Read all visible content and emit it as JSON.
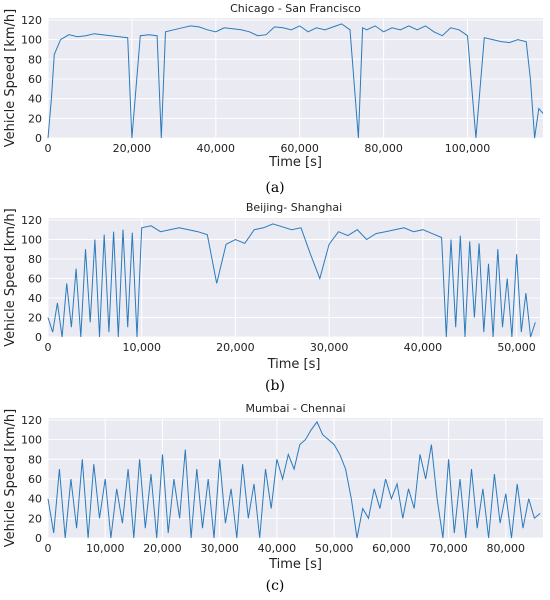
{
  "chart_data": [
    {
      "type": "line",
      "panel_label": "(a)",
      "title": "Chicago - San Francisco",
      "xlabel": "Time [s]",
      "ylabel": "Vehicle Speed [km/h]",
      "xlim": [
        0,
        118000
      ],
      "ylim": [
        0,
        122
      ],
      "xticks": [
        0,
        20000,
        40000,
        60000,
        80000,
        100000
      ],
      "xtick_labels": [
        "0",
        "20,000",
        "40,000",
        "60,000",
        "80,000",
        "100,000"
      ],
      "yticks": [
        0,
        20,
        40,
        60,
        80,
        100,
        120
      ],
      "ytick_labels": [
        "0",
        "20",
        "40",
        "60",
        "80",
        "100",
        "120"
      ],
      "grid": true,
      "series_color": "#2a7bbd",
      "bg_color": "#eaeaf2",
      "series": [
        {
          "x": [
            0,
            800,
            1500,
            3000,
            5000,
            7000,
            9000,
            11000,
            13000,
            15000,
            17000,
            19000,
            20000,
            22000,
            24000,
            26000,
            27000,
            28000,
            30000,
            32000,
            34000,
            36000,
            38000,
            40000,
            42000,
            44000,
            46000,
            48000,
            50000,
            52000,
            54000,
            56000,
            58000,
            60000,
            62000,
            64000,
            66000,
            68000,
            70000,
            72000,
            74000,
            75000,
            76000,
            78000,
            80000,
            82000,
            84000,
            86000,
            88000,
            90000,
            92000,
            94000,
            96000,
            98000,
            100000,
            102000,
            104000,
            106000,
            108000,
            110000,
            112000,
            114000,
            115000,
            116000,
            117000,
            118000
          ],
          "y": [
            0,
            40,
            85,
            100,
            105,
            103,
            104,
            106,
            105,
            104,
            103,
            102,
            0,
            104,
            105,
            104,
            0,
            108,
            110,
            112,
            114,
            113,
            110,
            108,
            112,
            111,
            110,
            108,
            104,
            105,
            113,
            112,
            110,
            114,
            108,
            112,
            110,
            113,
            116,
            110,
            0,
            112,
            110,
            114,
            108,
            112,
            110,
            114,
            110,
            114,
            108,
            104,
            112,
            110,
            104,
            0,
            102,
            100,
            98,
            97,
            100,
            98,
            60,
            0,
            30,
            25
          ]
        }
      ]
    },
    {
      "type": "line",
      "panel_label": "(b)",
      "title": "Beijing- Shanghai",
      "xlabel": "Time [s]",
      "ylabel": "Vehicle Speed [km/h]",
      "xlim": [
        0,
        52500
      ],
      "ylim": [
        0,
        122
      ],
      "xticks": [
        0,
        10000,
        20000,
        30000,
        40000,
        50000
      ],
      "xtick_labels": [
        "0",
        "10,000",
        "20,000",
        "30,000",
        "40,000",
        "50,000"
      ],
      "yticks": [
        0,
        20,
        40,
        60,
        80,
        100,
        120
      ],
      "ytick_labels": [
        "0",
        "20",
        "40",
        "60",
        "80",
        "100",
        "120"
      ],
      "grid": true,
      "series_color": "#2a7bbd",
      "bg_color": "#eaeaf2",
      "series": [
        {
          "x": [
            0,
            500,
            1000,
            1500,
            2000,
            2500,
            3000,
            3500,
            4000,
            4500,
            5000,
            5500,
            6000,
            6500,
            7000,
            7500,
            8000,
            8500,
            9000,
            9500,
            10000,
            11000,
            12000,
            13000,
            14000,
            15000,
            16000,
            17000,
            18000,
            19000,
            20000,
            21000,
            22000,
            23000,
            24000,
            25000,
            26000,
            27000,
            28000,
            29000,
            30000,
            31000,
            32000,
            33000,
            34000,
            35000,
            36000,
            37000,
            38000,
            39000,
            40000,
            41000,
            42000,
            42500,
            43000,
            43500,
            44000,
            44500,
            45000,
            45500,
            46000,
            46500,
            47000,
            47500,
            48000,
            48500,
            49000,
            49500,
            50000,
            50500,
            51000,
            51500,
            52000
          ],
          "y": [
            20,
            5,
            35,
            0,
            55,
            10,
            70,
            0,
            90,
            15,
            100,
            0,
            105,
            5,
            108,
            0,
            110,
            10,
            107,
            0,
            112,
            114,
            108,
            110,
            112,
            110,
            108,
            105,
            55,
            95,
            100,
            96,
            110,
            112,
            116,
            113,
            110,
            112,
            85,
            60,
            95,
            108,
            104,
            110,
            100,
            106,
            108,
            110,
            112,
            108,
            110,
            106,
            102,
            0,
            100,
            10,
            104,
            0,
            98,
            20,
            96,
            5,
            75,
            0,
            90,
            10,
            60,
            0,
            85,
            5,
            45,
            0,
            15
          ]
        }
      ]
    },
    {
      "type": "line",
      "panel_label": "(c)",
      "title": "Mumbai - Chennai",
      "xlabel": "Time [s]",
      "ylabel": "Vehicle Speed [km/h]",
      "xlim": [
        0,
        86500
      ],
      "ylim": [
        0,
        122
      ],
      "xticks": [
        0,
        10000,
        20000,
        30000,
        40000,
        50000,
        60000,
        70000,
        80000
      ],
      "xtick_labels": [
        "0",
        "10,000",
        "20,000",
        "30,000",
        "40,000",
        "50,000",
        "60,000",
        "70,000",
        "80,000"
      ],
      "yticks": [
        0,
        20,
        40,
        60,
        80,
        100,
        120
      ],
      "ytick_labels": [
        "0",
        "20",
        "40",
        "60",
        "80",
        "100",
        "120"
      ],
      "grid": true,
      "series_color": "#2a7bbd",
      "bg_color": "#eaeaf2",
      "series": [
        {
          "x": [
            0,
            1000,
            2000,
            3000,
            4000,
            5000,
            6000,
            7000,
            8000,
            9000,
            10000,
            11000,
            12000,
            13000,
            14000,
            15000,
            16000,
            17000,
            18000,
            19000,
            20000,
            21000,
            22000,
            23000,
            24000,
            25000,
            26000,
            27000,
            28000,
            29000,
            30000,
            31000,
            32000,
            33000,
            34000,
            35000,
            36000,
            37000,
            38000,
            39000,
            40000,
            41000,
            42000,
            43000,
            44000,
            45000,
            46000,
            47000,
            48000,
            49000,
            50000,
            51000,
            52000,
            53000,
            54000,
            55000,
            56000,
            57000,
            58000,
            59000,
            60000,
            61000,
            62000,
            63000,
            64000,
            65000,
            66000,
            67000,
            68000,
            69000,
            70000,
            71000,
            72000,
            73000,
            74000,
            75000,
            76000,
            77000,
            78000,
            79000,
            80000,
            81000,
            82000,
            83000,
            84000,
            85000,
            86000
          ],
          "y": [
            40,
            5,
            70,
            0,
            60,
            10,
            80,
            0,
            75,
            20,
            60,
            0,
            50,
            15,
            70,
            0,
            80,
            10,
            65,
            0,
            85,
            5,
            60,
            20,
            90,
            0,
            70,
            10,
            60,
            0,
            80,
            15,
            50,
            0,
            75,
            20,
            55,
            0,
            70,
            30,
            80,
            60,
            85,
            70,
            95,
            100,
            110,
            118,
            105,
            100,
            95,
            85,
            70,
            40,
            0,
            30,
            20,
            50,
            30,
            60,
            40,
            55,
            20,
            50,
            30,
            85,
            60,
            95,
            40,
            0,
            80,
            5,
            60,
            0,
            70,
            10,
            50,
            0,
            65,
            15,
            45,
            0,
            55,
            10,
            40,
            20,
            25
          ]
        }
      ]
    }
  ]
}
